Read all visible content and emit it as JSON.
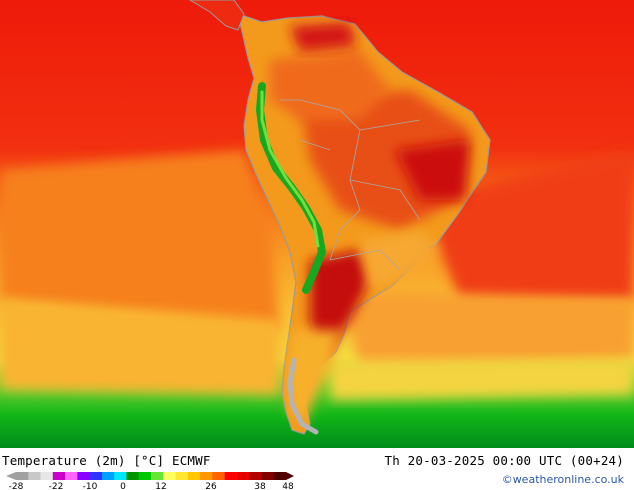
{
  "map": {
    "title": "Temperature (2m) [°C] ECMWF",
    "datetime": "Th 20-03-2025 00:00 UTC (00+24)",
    "credit": "©weatheronline.co.uk"
  },
  "legend": {
    "tick_labels": [
      "-28",
      "-22",
      "-10",
      "0",
      "12",
      "26",
      "38",
      "48"
    ],
    "colors": [
      "#a0a0a0",
      "#c8c8c8",
      "#e6e6e6",
      "#c800c8",
      "#ff64ff",
      "#8c00ff",
      "#3232ff",
      "#00a0ff",
      "#00e6ff",
      "#009600",
      "#00c800",
      "#64e632",
      "#ffff64",
      "#ffe632",
      "#ffc800",
      "#ff9600",
      "#ff6400",
      "#ff0000",
      "#e60000",
      "#b40000",
      "#820000",
      "#500000"
    ]
  }
}
